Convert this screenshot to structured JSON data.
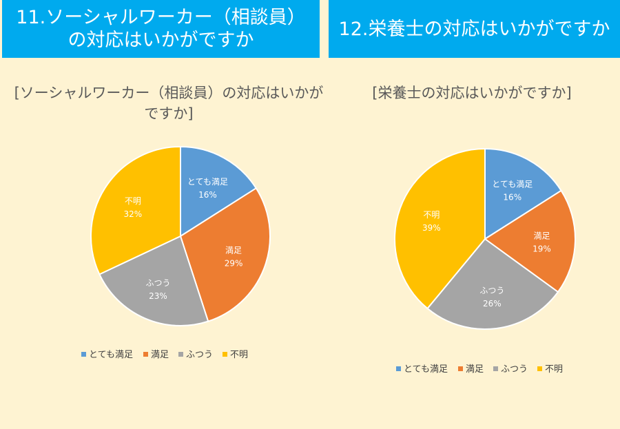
{
  "headers": {
    "left": [
      "11.ソーシャルワーカー（相談員）",
      "の対応はいかがですか"
    ],
    "right": "12.栄養士の対応はいかがですか"
  },
  "colors": {
    "header_bg": "#00AAEE",
    "background": "#FEF3D2",
    "series": [
      "#5B9BD5",
      "#ED7D31",
      "#A5A5A5",
      "#FFC000"
    ]
  },
  "chart_data": [
    {
      "type": "pie",
      "title_lines": [
        "[ソーシャルワーカー（相談員）の対応はいかが",
        "ですか]"
      ],
      "categories": [
        "とても満足",
        "満足",
        "ふつう",
        "不明"
      ],
      "values": [
        16,
        29,
        23,
        32
      ],
      "value_labels": [
        "16%",
        "29%",
        "23%",
        "32%"
      ],
      "legend": "bottom"
    },
    {
      "type": "pie",
      "title_lines": [
        "[栄養士の対応はいかがですか]"
      ],
      "categories": [
        "とても満足",
        "満足",
        "ふつう",
        "不明"
      ],
      "values": [
        16,
        19,
        26,
        39
      ],
      "value_labels": [
        "16%",
        "19%",
        "26%",
        "39%"
      ],
      "legend": "bottom"
    }
  ]
}
